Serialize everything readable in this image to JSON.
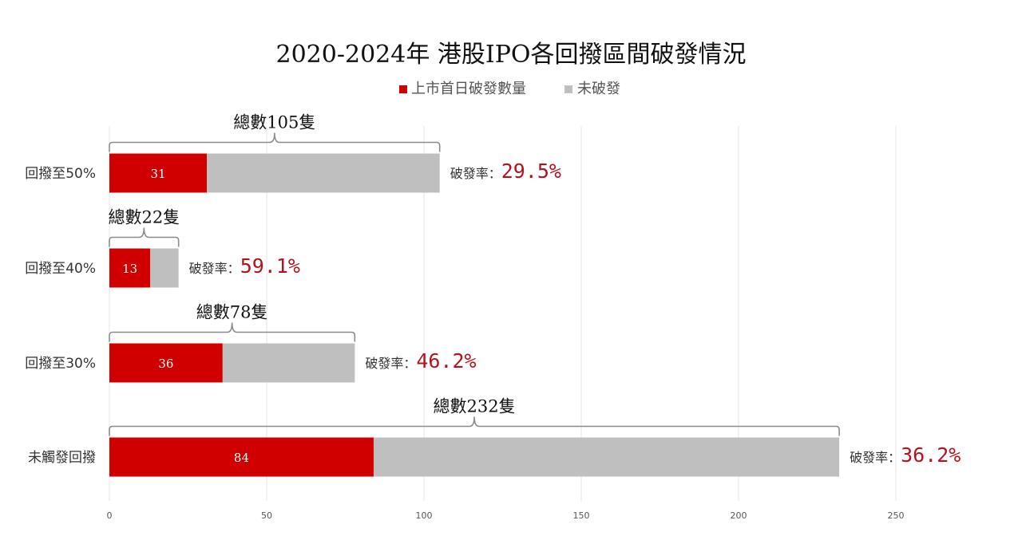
{
  "chart_data": {
    "type": "bar",
    "orientation": "horizontal",
    "stacked": true,
    "title": "2020-2024年 港股IPO各回撥區間破發情況",
    "legend_position": "top",
    "categories": [
      "回撥至50%",
      "回撥至40%",
      "回撥至30%",
      "未觸發回撥"
    ],
    "series": [
      {
        "name": "上市首日破發數量",
        "color": "#d00000",
        "values": [
          31,
          13,
          36,
          84
        ]
      },
      {
        "name": "未破發",
        "color": "#bfbfbf",
        "values": [
          74,
          9,
          42,
          148
        ]
      }
    ],
    "totals": [
      "總數105隻",
      "總數22隻",
      "總數78隻",
      "總數232隻"
    ],
    "total_values": [
      105,
      22,
      78,
      232
    ],
    "rate_prefix": "破發率：",
    "rates": [
      "29.5%",
      "59.1%",
      "46.2%",
      "36.2%"
    ],
    "xlim": [
      0,
      250
    ],
    "xticks": [
      0,
      50,
      100,
      150,
      200,
      250
    ],
    "grid": true,
    "rate_color": "#b5121b"
  }
}
